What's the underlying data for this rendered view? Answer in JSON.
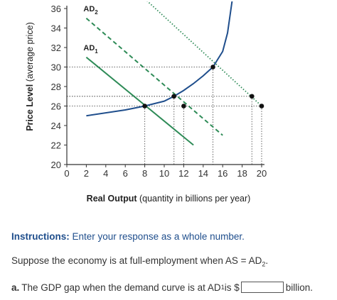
{
  "chart_data": {
    "type": "line",
    "xlabel_bold": "Real Output",
    "xlabel_rest": " (quantity in billions per year)",
    "ylabel_bold": "Price Level",
    "ylabel_rest": " (average price)",
    "x_ticks": [
      "0",
      "2",
      "4",
      "6",
      "8",
      "10",
      "12",
      "14",
      "16",
      "18",
      "20"
    ],
    "y_ticks": [
      "20",
      "22",
      "24",
      "26",
      "28",
      "30",
      "32",
      "34",
      "36"
    ],
    "xlim": [
      0,
      20
    ],
    "ylim": [
      20,
      36
    ],
    "series": [
      {
        "name": "AD₁",
        "label_main": "AD",
        "label_sub": "1",
        "color": "#2e8b57",
        "style": "solid",
        "x": [
          2,
          13
        ],
        "y": [
          31,
          22
        ]
      },
      {
        "name": "AD₂",
        "label_main": "AD",
        "label_sub": "2",
        "color": "#2e8b57",
        "style": "dashed",
        "x": [
          2,
          16
        ],
        "y": [
          35,
          23
        ]
      },
      {
        "name": "",
        "color": "#2e8b57",
        "style": "dotted",
        "x": [
          8,
          20
        ],
        "y": [
          37,
          26
        ]
      },
      {
        "name": "",
        "color": "#1f4e8c",
        "style": "solid",
        "curve": true,
        "x": [
          2,
          6,
          8,
          10,
          11,
          12,
          13,
          14,
          15,
          16,
          16.5,
          17
        ],
        "y": [
          25,
          25.6,
          26,
          26.5,
          27,
          27.6,
          28.3,
          29.1,
          30,
          31.6,
          33.5,
          37
        ]
      }
    ],
    "points": [
      {
        "x": 8,
        "y": 26
      },
      {
        "x": 11,
        "y": 27
      },
      {
        "x": 12,
        "y": 26
      },
      {
        "x": 15,
        "y": 30
      },
      {
        "x": 19,
        "y": 27
      },
      {
        "x": 20,
        "y": 26
      }
    ]
  },
  "instructions": {
    "label": "Instructions:",
    "text": " Enter your response as a whole number."
  },
  "statement": {
    "text": "Suppose the economy is at full-employment when AS = AD",
    "sub": "2",
    "end": "."
  },
  "question": {
    "letter": "a.",
    "text_before": "The GDP gap when the demand curve is at AD",
    "sub": "1",
    "text_mid": " is $",
    "answer_value": "",
    "unit": "billion."
  }
}
